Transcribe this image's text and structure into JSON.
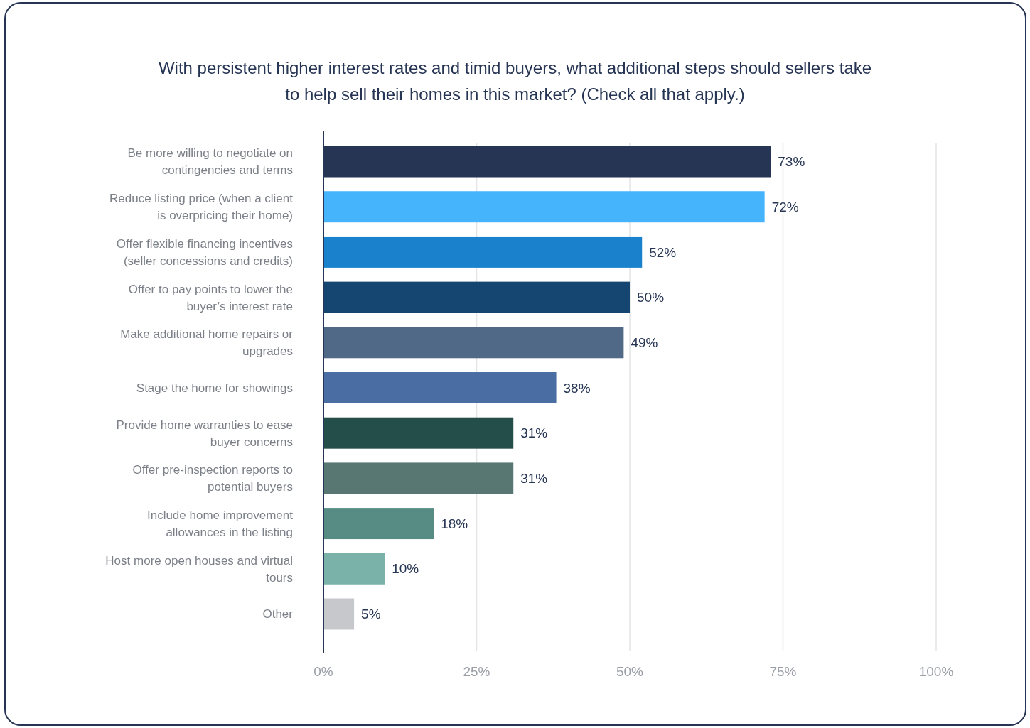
{
  "chart_data": {
    "type": "bar",
    "orientation": "horizontal",
    "title": "With persistent higher interest rates and timid buyers, what additional steps should sellers take to help sell their homes in this market? (Check all that apply.)",
    "categories": [
      "Be more willing to negotiate on contingencies and terms",
      "Reduce listing price (when a client is overpricing their home)",
      "Offer flexible financing incentives (seller concessions and credits)",
      "Offer to pay points to lower the buyer’s interest rate",
      "Make additional home repairs or upgrades",
      "Stage the home for showings",
      "Provide home warranties to ease buyer concerns",
      "Offer pre-inspection reports to potential buyers",
      "Include home improvement allowances in the listing",
      "Host more open houses and virtual tours",
      "Other"
    ],
    "values": [
      73,
      72,
      52,
      50,
      49,
      38,
      31,
      31,
      18,
      10,
      5
    ],
    "value_labels": [
      "73%",
      "72%",
      "52%",
      "50%",
      "49%",
      "38%",
      "31%",
      "31%",
      "18%",
      "10%",
      "5%"
    ],
    "colors": [
      "#263553",
      "#45b4fd",
      "#1a82cc",
      "#154672",
      "#4f6987",
      "#4a6ea3",
      "#244e49",
      "#587672",
      "#568c84",
      "#7ab2aa",
      "#c6c8cc"
    ],
    "xlim": [
      0,
      100
    ],
    "xticks": [
      {
        "value": 0,
        "label": "0%"
      },
      {
        "value": 25,
        "label": "25%"
      },
      {
        "value": 50,
        "label": "50%"
      },
      {
        "value": 75,
        "label": "75%"
      },
      {
        "value": 100,
        "label": "100%"
      }
    ],
    "grid": "x"
  }
}
